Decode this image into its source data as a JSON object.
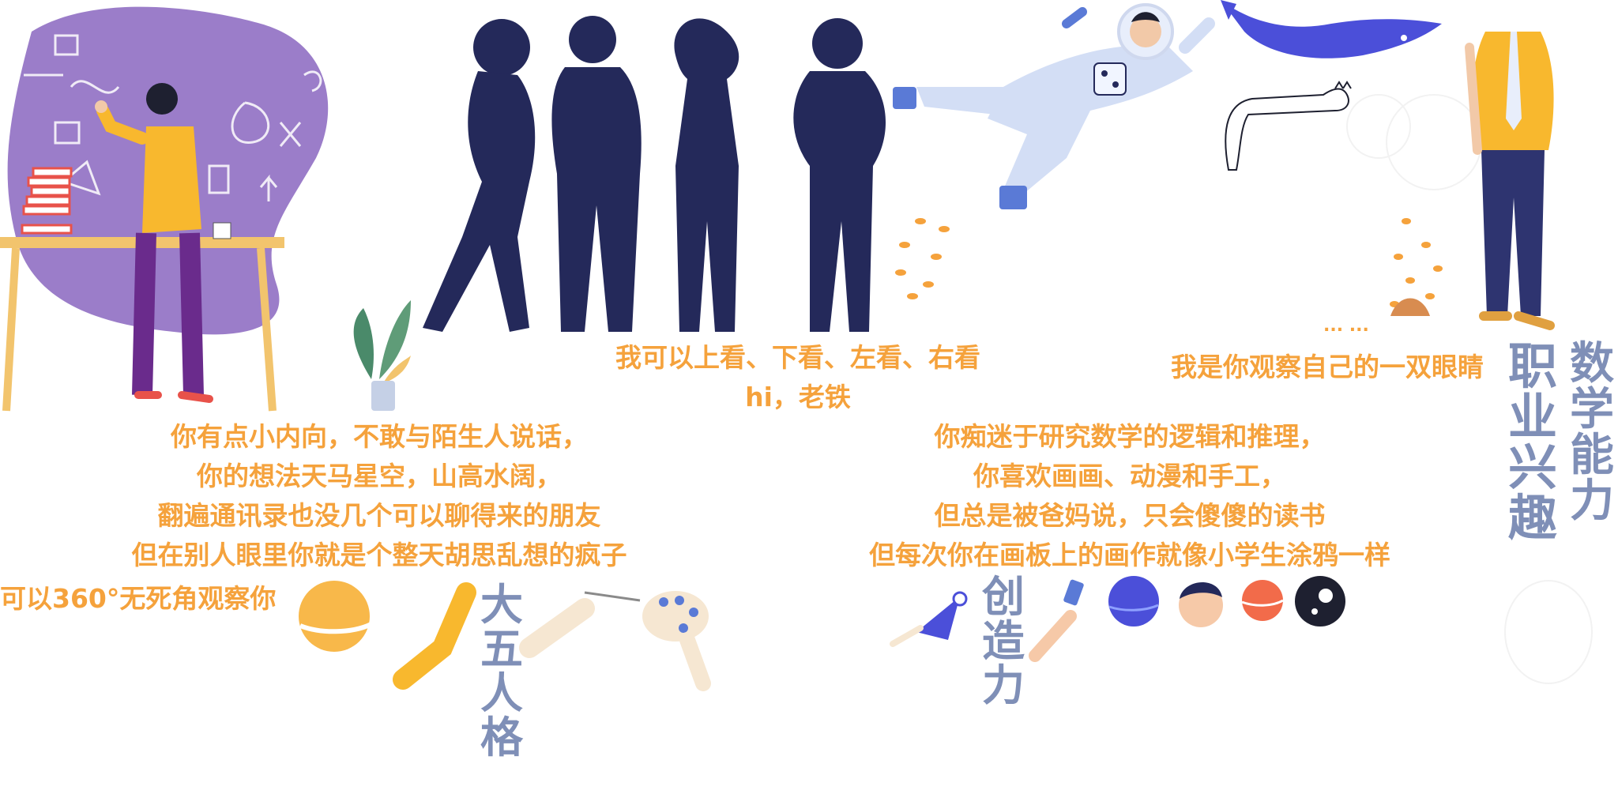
{
  "captions": {
    "top_middle": [
      "我可以上看、下看、左看、右看",
      "hi，老铁"
    ],
    "top_right": "我是你观察自己的一双眼睛",
    "left_block": [
      "你有点小内向，不敢与陌生人说话，",
      "你的想法天马星空，山高水阔，",
      "翻遍通讯录也没几个可以聊得来的朋友",
      "但在别人眼里你就是个整天胡思乱想的疯子"
    ],
    "left_small": "可以360°无死角观察你",
    "right_block": [
      "你痴迷于研究数学的逻辑和推理，",
      "你喜欢画画、动漫和手工，",
      "但总是被爸妈说，只会傻傻的读书",
      "但每次你在画板上的画作就像小学生涂鸦一样"
    ],
    "board_dots": "... ..."
  },
  "section_titles": {
    "big_five": "大五人格",
    "creativity": "创造力",
    "career_interest": "职业兴趣",
    "math_ability": "数学能力"
  },
  "icons": [
    "thinking-man-illustration",
    "silhouette-group-illustration",
    "astronaut-illustration",
    "whale-illustration",
    "cat-doodle-illustration",
    "businessman-illustration",
    "potted-plant-icon",
    "fish-school-icon",
    "planet-icon",
    "rocket-icon",
    "paint-palette-icon",
    "avatar-icon"
  ],
  "colors": {
    "accent_orange": "#f5a23c",
    "title_blue_grey": "#7f8fb7",
    "silhouette_navy": "#24295a",
    "blob_purple": "#9b7dc9",
    "whale_blue": "#4b4fd9"
  }
}
